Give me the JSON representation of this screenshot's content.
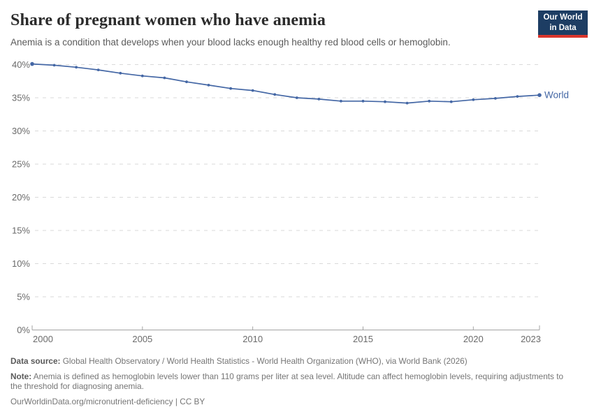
{
  "header": {
    "title": "Share of pregnant women who have anemia",
    "subtitle": "Anemia is a condition that develops when your blood lacks enough healthy red blood cells or hemoglobin.",
    "logo": {
      "line1": "Our World",
      "line2": "in Data"
    }
  },
  "chart_data": {
    "type": "line",
    "title": "Share of pregnant women who have anemia",
    "x": [
      2000,
      2001,
      2002,
      2003,
      2004,
      2005,
      2006,
      2007,
      2008,
      2009,
      2010,
      2011,
      2012,
      2013,
      2014,
      2015,
      2016,
      2017,
      2018,
      2019,
      2020,
      2021,
      2022,
      2023
    ],
    "series": [
      {
        "name": "World",
        "color": "#4467a5",
        "values": [
          40.1,
          39.9,
          39.6,
          39.2,
          38.7,
          38.3,
          38.0,
          37.4,
          36.9,
          36.4,
          36.1,
          35.5,
          35.0,
          34.8,
          34.5,
          34.5,
          34.4,
          34.2,
          34.5,
          34.4,
          34.7,
          34.9,
          35.2,
          35.4
        ]
      }
    ],
    "xlabel": "",
    "ylabel": "",
    "unit": "%",
    "xlim": [
      2000,
      2023
    ],
    "ylim": [
      0,
      40
    ],
    "x_ticks": [
      2000,
      2005,
      2010,
      2015,
      2020,
      2023
    ],
    "y_ticks": [
      0,
      5,
      10,
      15,
      20,
      25,
      30,
      35,
      40
    ],
    "y_tick_suffix": "%",
    "grid": "horizontal-dashed",
    "legend": "inline-end-label",
    "colors": {
      "gridline": "#d9d9d9",
      "axis": "#a3a3a3",
      "tick_label": "#6b6b6b"
    }
  },
  "footer": {
    "source_label": "Data source:",
    "source_text": "Global Health Observatory / World Health Statistics - World Health Organization (WHO), via World Bank (2026)",
    "note_label": "Note:",
    "note_text": "Anemia is defined as hemoglobin levels lower than 110 grams per liter at sea level. Altitude can affect hemoglobin levels, requiring adjustments to the threshold for diagnosing anemia.",
    "url": "OurWorldinData.org/micronutrient-deficiency",
    "separator": "|",
    "license": "CC BY"
  }
}
